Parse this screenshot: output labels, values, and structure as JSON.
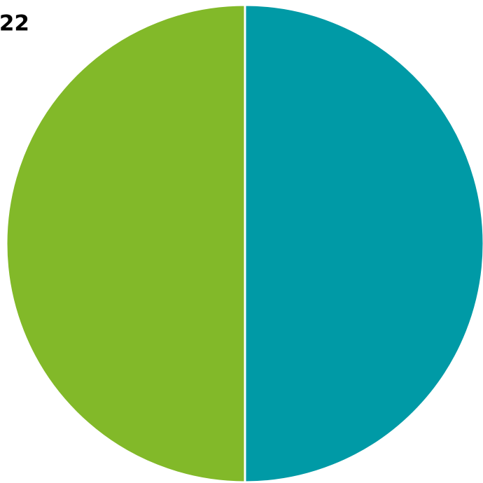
{
  "chart_data": {
    "type": "pie",
    "title": "22",
    "categories": [
      null,
      null
    ],
    "values": [
      50,
      50
    ],
    "colors": [
      "#009aa6",
      "#82b929"
    ]
  }
}
